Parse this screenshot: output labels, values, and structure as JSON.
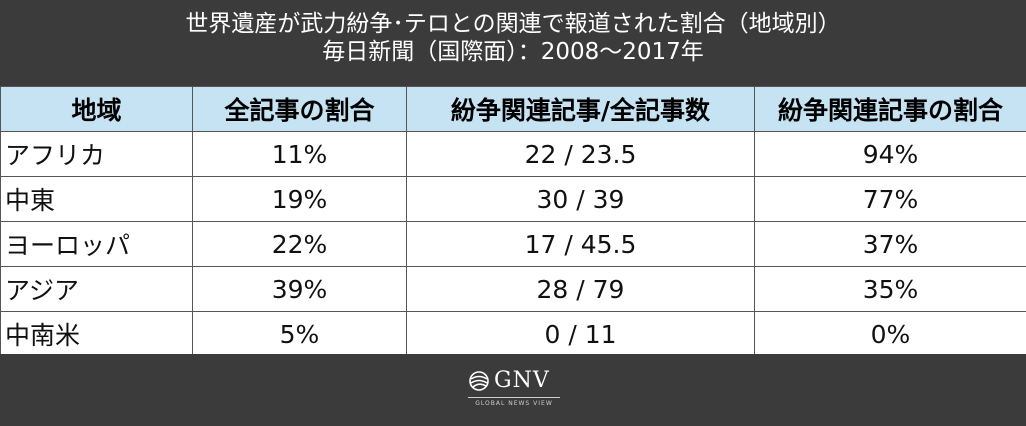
{
  "header": {
    "title_line1": "世界遺産が武力紛争･テロとの関連で報道された割合（地域別）",
    "title_line2": "毎日新聞（国際面）：2008〜2017年"
  },
  "chart_data": {
    "type": "table",
    "columns": [
      "地域",
      "全記事の割合",
      "紛争関連記事/全記事数",
      "紛争関連記事の割合"
    ],
    "rows": [
      {
        "region": "アフリカ",
        "share_of_all": "11%",
        "conflict_over_total": "22 / 23.5",
        "conflict_share": "94%"
      },
      {
        "region": "中東",
        "share_of_all": "19%",
        "conflict_over_total": "30 / 39",
        "conflict_share": "77%"
      },
      {
        "region": "ヨーロッパ",
        "share_of_all": "22%",
        "conflict_over_total": "17 / 45.5",
        "conflict_share": "37%"
      },
      {
        "region": "アジア",
        "share_of_all": "39%",
        "conflict_over_total": "28 / 79",
        "conflict_share": "35%"
      },
      {
        "region": "中南米",
        "share_of_all": "5%",
        "conflict_over_total": "0 / 11",
        "conflict_share": "0%"
      }
    ]
  },
  "footer": {
    "logo_text": "GNV",
    "logo_subtext": "GLOBAL NEWS VIEW",
    "logo_icon": "globe-swoosh-icon"
  },
  "colors": {
    "background": "#3b3b3b",
    "header_cell": "#c6e3f3",
    "body_cell": "#ffffff",
    "border": "#555555"
  }
}
